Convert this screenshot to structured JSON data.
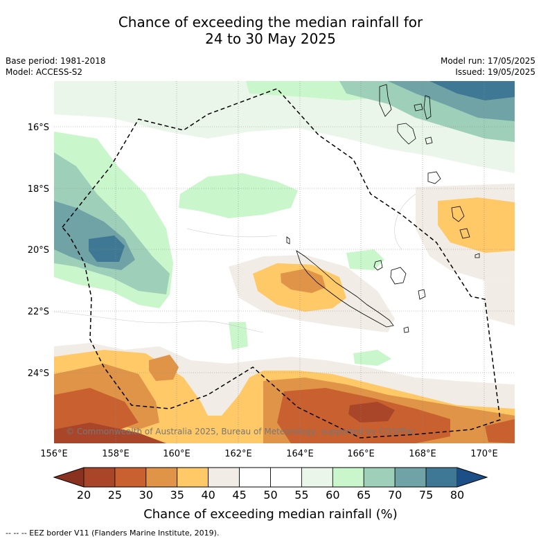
{
  "title_line1": "Chance of exceeding the median rainfall for",
  "title_line2": "24 to 30 May 2025",
  "base_period": "Base period: 1981-2018",
  "model": "Model: ACCESS-S2",
  "model_run": "Model run: 17/05/2025",
  "issued": "Issued: 19/05/2025",
  "copyright": "© Commonwealth of Australia 2025, Bureau of Meteorology, supported by COSPPac",
  "lon_labels": [
    "156°E",
    "158°E",
    "160°E",
    "162°E",
    "164°E",
    "166°E",
    "168°E",
    "170°E"
  ],
  "lat_labels": [
    "16°S",
    "18°S",
    "20°S",
    "22°S",
    "24°S"
  ],
  "colorbar": {
    "ticks": [
      "20",
      "25",
      "30",
      "35",
      "40",
      "45",
      "50",
      "55",
      "60",
      "65",
      "70",
      "75",
      "80"
    ],
    "colors": [
      "#a9462a",
      "#c9602f",
      "#e09448",
      "#fec966",
      "#f1ede6",
      "#ffffff",
      "#ffffff",
      "#eaf6ea",
      "#c9f6cb",
      "#9ecfb9",
      "#6fa3a6",
      "#3f7894"
    ],
    "under_color": "#8a3220",
    "over_color": "#1c4f85",
    "label": "Chance of exceeding median rainfall (%)"
  },
  "footer": "--  --  -- EEZ border V11 (Flanders Marine Institute, 2019)."
}
